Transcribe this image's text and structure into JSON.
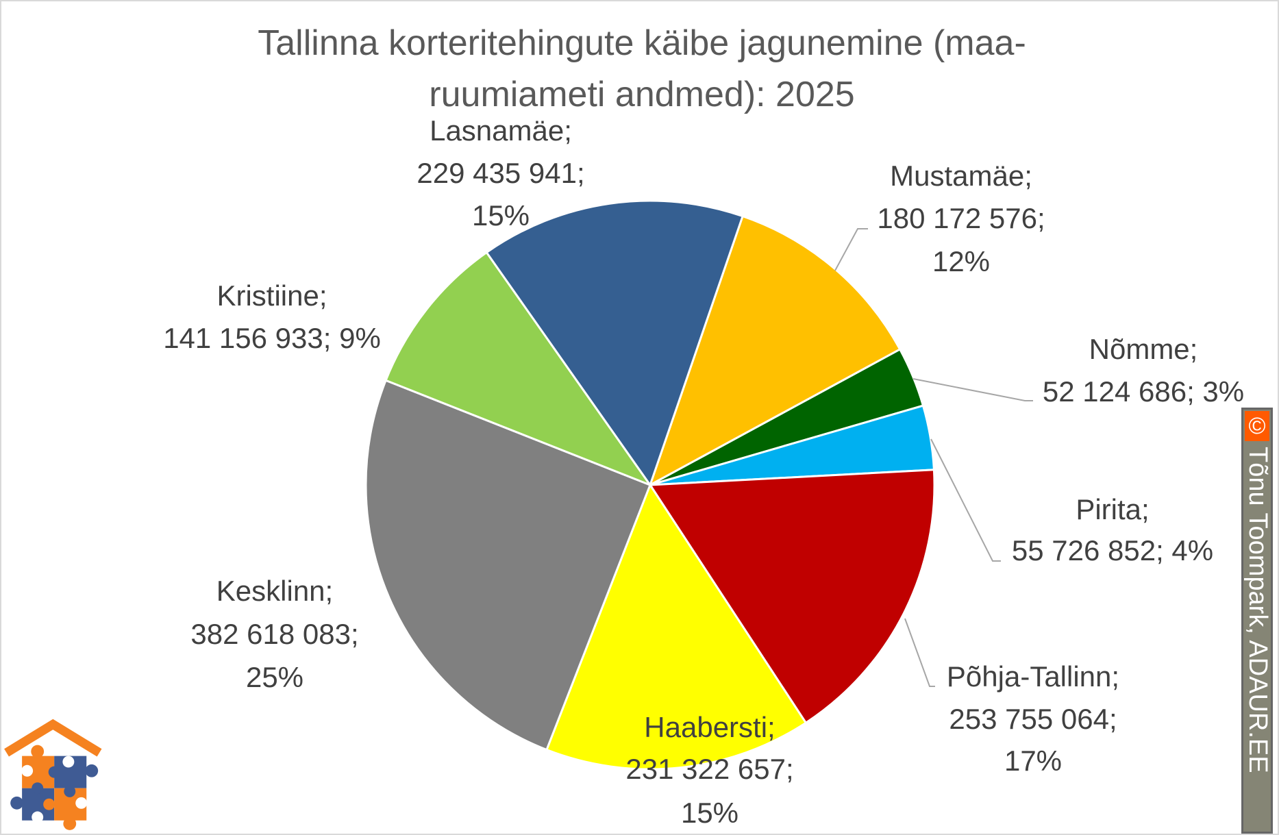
{
  "chart_data": {
    "type": "pie",
    "title": "Tallinna korteritehingute käibe jagunemine (maa-ruumiameti andmed): 2025",
    "title_lines": [
      "Tallinna korteritehingute käibe jagunemine (maa-",
      "ruumiameti andmed): 2025"
    ],
    "start_angle_deg": 19,
    "direction": "clockwise",
    "slices": [
      {
        "name": "Mustamäe",
        "value": 180172576,
        "percent": 12,
        "color": "#FFC000",
        "label_lines": [
          "Mustamäe;",
          "180 172 576;",
          "12%"
        ]
      },
      {
        "name": "Nõmme",
        "value": 52124686,
        "percent": 3,
        "color": "#006400",
        "label_lines": [
          "Nõmme;",
          "52 124 686; 3%"
        ]
      },
      {
        "name": "Pirita",
        "value": 55726852,
        "percent": 4,
        "color": "#00B0F0",
        "label_lines": [
          "Pirita;",
          "55 726 852; 4%"
        ]
      },
      {
        "name": "Põhja-Tallinn",
        "value": 253755064,
        "percent": 17,
        "color": "#C00000",
        "label_lines": [
          "Põhja-Tallinn;",
          "253 755 064;",
          "17%"
        ]
      },
      {
        "name": "Haabersti",
        "value": 231322657,
        "percent": 15,
        "color": "#FFFF00",
        "label_lines": [
          "Haabersti;",
          "231 322 657;",
          "15%"
        ]
      },
      {
        "name": "Kesklinn",
        "value": 382618083,
        "percent": 25,
        "color": "#808080",
        "label_lines": [
          "Kesklinn;",
          "382 618 083;",
          "25%"
        ]
      },
      {
        "name": "Kristiine",
        "value": 141156933,
        "percent": 9,
        "color": "#92D050",
        "label_lines": [
          "Kristiine;",
          "141 156 933; 9%"
        ]
      },
      {
        "name": "Lasnamäe",
        "value": 229435941,
        "percent": 15,
        "color": "#355F91",
        "label_lines": [
          "Lasnamäe;",
          "229 435 941;",
          "15%"
        ]
      }
    ]
  },
  "watermark": {
    "symbol": "©",
    "text": "Tõnu Toompark, ADAUR.EE"
  },
  "logo": {
    "name": "house-puzzle-logo"
  }
}
